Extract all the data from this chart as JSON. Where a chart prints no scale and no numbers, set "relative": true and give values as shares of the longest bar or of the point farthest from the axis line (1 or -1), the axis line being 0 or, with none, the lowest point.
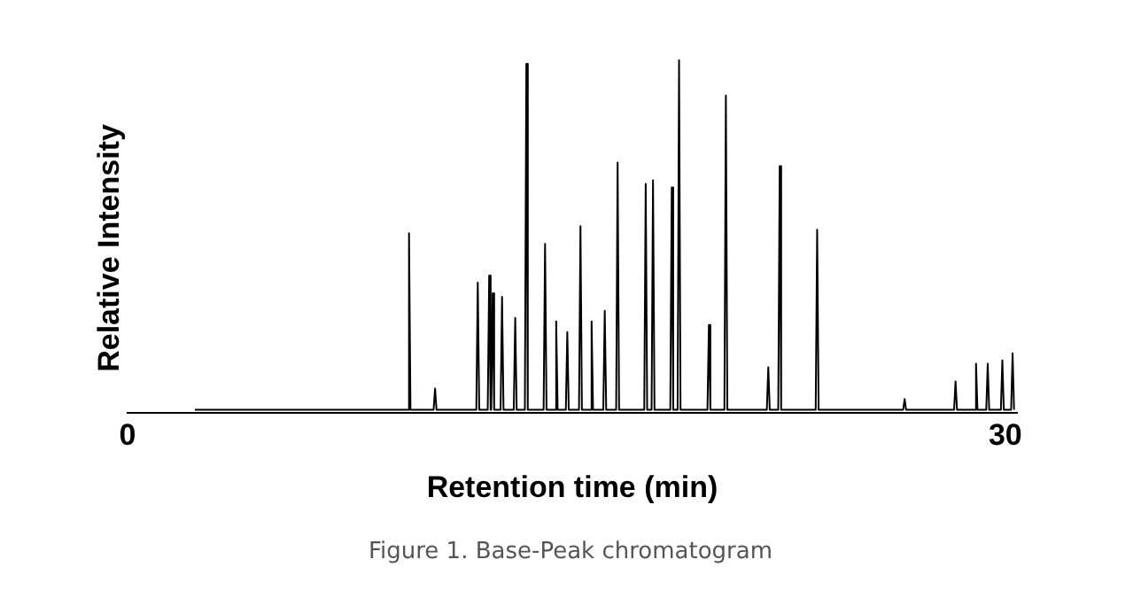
{
  "chart_data": {
    "type": "line",
    "relative": true,
    "xlabel": "Retention time (min)",
    "ylabel": "Relative Intensity",
    "xlim": [
      0,
      30.4
    ],
    "xticks": [
      0,
      30
    ],
    "grid": false,
    "legend": false,
    "marker": "none",
    "annotations": [
      "Figure 1. Base-Peak chromatogram"
    ],
    "series": [
      {
        "color": "#000000",
        "x": [
          2.3,
          9.57,
          9.62,
          9.67,
          10.46,
          10.51,
          10.56,
          11.92,
          11.97,
          12.02,
          12.31,
          12.36,
          12.41,
          12.43,
          12.48,
          12.53,
          12.75,
          12.8,
          12.85,
          13.2,
          13.25,
          13.3,
          13.58,
          13.63,
          13.68,
          14.22,
          14.27,
          14.32,
          14.6,
          14.65,
          14.7,
          14.98,
          15.03,
          15.08,
          15.43,
          15.48,
          15.53,
          15.81,
          15.86,
          15.91,
          16.26,
          16.31,
          16.36,
          16.7,
          16.75,
          16.8,
          17.66,
          17.71,
          17.76,
          17.91,
          17.96,
          18.01,
          18.55,
          18.6,
          18.65,
          18.8,
          18.85,
          18.9,
          19.82,
          19.87,
          19.92,
          20.4,
          20.45,
          20.5,
          21.85,
          21.9,
          21.95,
          22.24,
          22.29,
          22.34,
          23.52,
          23.57,
          23.62,
          26.51,
          26.56,
          26.61,
          28.25,
          28.3,
          28.35,
          28.95,
          29.0,
          29.05,
          29.35,
          29.4,
          29.45,
          29.85,
          29.9,
          29.95,
          30.2,
          30.25,
          30.3
        ],
        "values": [
          0.01,
          0.01,
          0.51,
          0.01,
          0.01,
          0.07,
          0.01,
          0.01,
          0.37,
          0.01,
          0.01,
          0.39,
          0.01,
          0.01,
          0.34,
          0.01,
          0.01,
          0.33,
          0.01,
          0.01,
          0.27,
          0.01,
          0.01,
          0.99,
          0.01,
          0.01,
          0.48,
          0.01,
          0.01,
          0.26,
          0.01,
          0.01,
          0.23,
          0.01,
          0.01,
          0.53,
          0.01,
          0.01,
          0.26,
          0.01,
          0.01,
          0.29,
          0.01,
          0.01,
          0.71,
          0.01,
          0.01,
          0.65,
          0.01,
          0.01,
          0.66,
          0.01,
          0.01,
          0.64,
          0.01,
          0.01,
          1,
          0.01,
          0.01,
          0.25,
          0.01,
          0.01,
          0.9,
          0.01,
          0.01,
          0.13,
          0.01,
          0.01,
          0.7,
          0.01,
          0.01,
          0.52,
          0.01,
          0.01,
          0.04,
          0.01,
          0.01,
          0.09,
          0.01,
          0.01,
          0.14,
          0.01,
          0.01,
          0.14,
          0.01,
          0.01,
          0.15,
          0.01,
          0.01,
          0.17,
          0.01
        ]
      }
    ]
  }
}
